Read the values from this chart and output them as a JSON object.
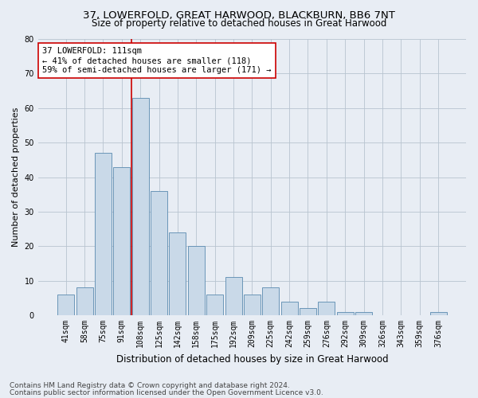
{
  "title": "37, LOWERFOLD, GREAT HARWOOD, BLACKBURN, BB6 7NT",
  "subtitle": "Size of property relative to detached houses in Great Harwood",
  "xlabel": "Distribution of detached houses by size in Great Harwood",
  "ylabel": "Number of detached properties",
  "footnote1": "Contains HM Land Registry data © Crown copyright and database right 2024.",
  "footnote2": "Contains public sector information licensed under the Open Government Licence v3.0.",
  "categories": [
    "41sqm",
    "58sqm",
    "75sqm",
    "91sqm",
    "108sqm",
    "125sqm",
    "142sqm",
    "158sqm",
    "175sqm",
    "192sqm",
    "209sqm",
    "225sqm",
    "242sqm",
    "259sqm",
    "276sqm",
    "292sqm",
    "309sqm",
    "326sqm",
    "343sqm",
    "359sqm",
    "376sqm"
  ],
  "values": [
    6,
    8,
    47,
    43,
    63,
    36,
    24,
    20,
    6,
    11,
    6,
    8,
    4,
    2,
    4,
    1,
    1,
    0,
    0,
    0,
    1
  ],
  "bar_color": "#c9d9e8",
  "bar_edge_color": "#5a8ab0",
  "grid_color": "#b8c4d0",
  "background_color": "#e8edf4",
  "property_line_color": "#cc0000",
  "property_bin_index": 4,
  "annotation_text": "37 LOWERFOLD: 111sqm\n← 41% of detached houses are smaller (118)\n59% of semi-detached houses are larger (171) →",
  "annotation_box_color": "#ffffff",
  "annotation_box_edge": "#cc0000",
  "ylim": [
    0,
    80
  ],
  "yticks": [
    0,
    10,
    20,
    30,
    40,
    50,
    60,
    70,
    80
  ],
  "title_fontsize": 9.5,
  "subtitle_fontsize": 8.5,
  "xlabel_fontsize": 8.5,
  "ylabel_fontsize": 8,
  "tick_fontsize": 7,
  "annotation_fontsize": 7.5,
  "footnote_fontsize": 6.5
}
